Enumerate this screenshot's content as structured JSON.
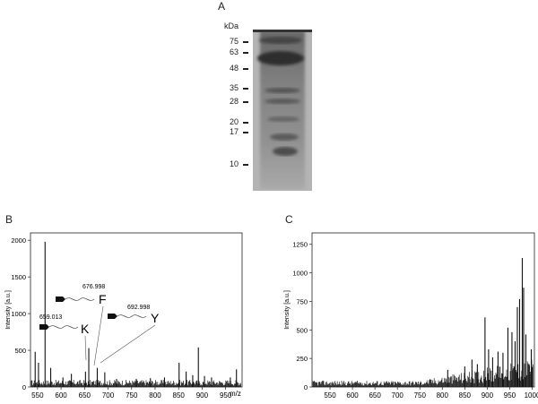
{
  "panels": {
    "a": "A",
    "b": "B",
    "c": "C"
  },
  "gel": {
    "unit_label": "kDa",
    "markers": [
      {
        "label": "75",
        "kda": 75
      },
      {
        "label": "63",
        "kda": 63
      },
      {
        "label": "48",
        "kda": 48
      },
      {
        "label": "35",
        "kda": 35
      },
      {
        "label": "28",
        "kda": 28
      },
      {
        "label": "20",
        "kda": 20
      },
      {
        "label": "17",
        "kda": 17
      },
      {
        "label": "10",
        "kda": 10
      }
    ]
  },
  "chart_data": [
    {
      "type": "line",
      "panel": "B",
      "xlabel": "m/z",
      "ylabel": "Intensity [a.u.]",
      "xlim": [
        535,
        985
      ],
      "ylim": [
        0,
        2100
      ],
      "xticks": [
        550,
        600,
        650,
        700,
        750,
        800,
        850,
        900,
        950
      ],
      "yticks": [
        0,
        500,
        1000,
        1500,
        2000
      ],
      "grid": false,
      "baseline": 60,
      "peaks": [
        {
          "x": 545,
          "y": 480
        },
        {
          "x": 552,
          "y": 330
        },
        {
          "x": 566,
          "y": 1980
        },
        {
          "x": 578,
          "y": 260
        },
        {
          "x": 604,
          "y": 130
        },
        {
          "x": 622,
          "y": 180
        },
        {
          "x": 652,
          "y": 210
        },
        {
          "x": 659,
          "y": 530
        },
        {
          "x": 677,
          "y": 260
        },
        {
          "x": 693,
          "y": 200
        },
        {
          "x": 718,
          "y": 110
        },
        {
          "x": 760,
          "y": 110
        },
        {
          "x": 790,
          "y": 120
        },
        {
          "x": 820,
          "y": 130
        },
        {
          "x": 851,
          "y": 330
        },
        {
          "x": 866,
          "y": 210
        },
        {
          "x": 880,
          "y": 160
        },
        {
          "x": 892,
          "y": 540
        },
        {
          "x": 905,
          "y": 150
        },
        {
          "x": 920,
          "y": 130
        },
        {
          "x": 960,
          "y": 130
        },
        {
          "x": 973,
          "y": 240
        }
      ],
      "annotations": [
        {
          "mz_label": "676.998",
          "residue": "F",
          "x": 677
        },
        {
          "mz_label": "659.013",
          "residue": "K",
          "x": 659
        },
        {
          "mz_label": "692.998",
          "residue": "Y",
          "x": 693
        }
      ]
    },
    {
      "type": "line",
      "panel": "C",
      "xlabel": "m/z",
      "ylabel": "Intensity [a.u.]",
      "xlim": [
        510,
        1005
      ],
      "ylim": [
        0,
        1350
      ],
      "xticks": [
        550,
        600,
        650,
        700,
        750,
        800,
        850,
        900,
        950,
        1000
      ],
      "yticks": [
        0,
        250,
        500,
        750,
        1000,
        1250
      ],
      "grid": false,
      "peaks": [
        {
          "x": 812,
          "y": 150
        },
        {
          "x": 850,
          "y": 180
        },
        {
          "x": 866,
          "y": 240
        },
        {
          "x": 878,
          "y": 200
        },
        {
          "x": 895,
          "y": 610
        },
        {
          "x": 903,
          "y": 330
        },
        {
          "x": 912,
          "y": 260
        },
        {
          "x": 924,
          "y": 310
        },
        {
          "x": 935,
          "y": 300
        },
        {
          "x": 946,
          "y": 520
        },
        {
          "x": 955,
          "y": 480
        },
        {
          "x": 962,
          "y": 400
        },
        {
          "x": 967,
          "y": 700
        },
        {
          "x": 972,
          "y": 770
        },
        {
          "x": 978,
          "y": 1130
        },
        {
          "x": 981,
          "y": 870
        },
        {
          "x": 986,
          "y": 460
        },
        {
          "x": 993,
          "y": 200
        },
        {
          "x": 998,
          "y": 330
        }
      ]
    }
  ]
}
